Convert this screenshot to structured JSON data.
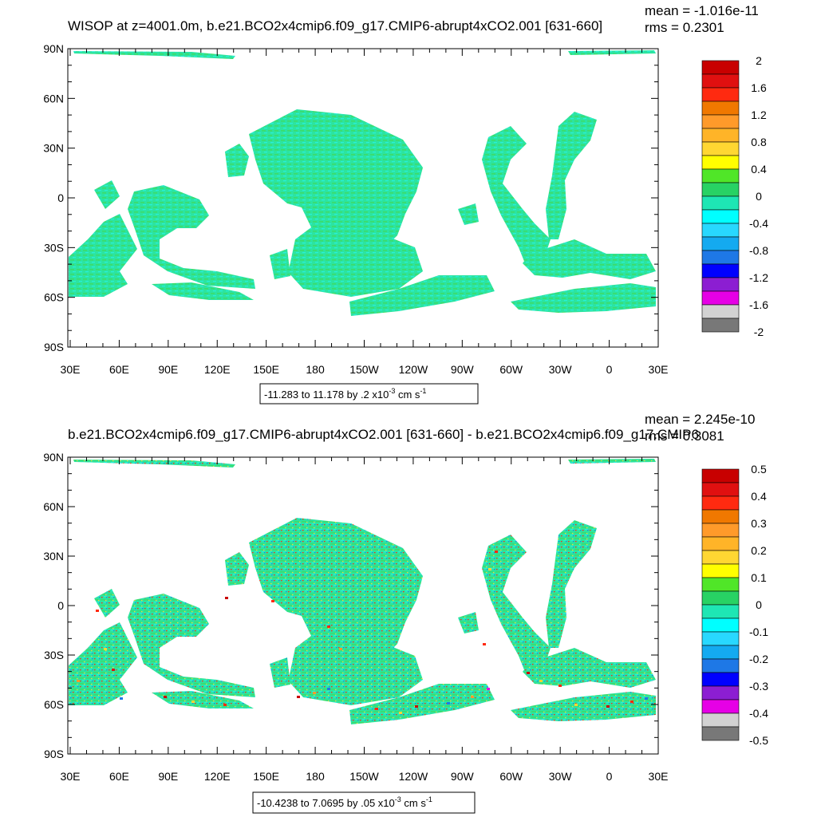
{
  "chart_data": [
    {
      "type": "heatmap",
      "title": "WISOP at z=4001.0m, b.e21.BCO2x4cmip6.f09_g17.CMIP6-abrupt4xCO2.001 [631-660]",
      "mean_text": "mean = -1.016e-11",
      "rms_text": "rms = 0.2301",
      "xticks": [
        "30E",
        "60E",
        "90E",
        "120E",
        "150E",
        "180",
        "150W",
        "120W",
        "90W",
        "60W",
        "30W",
        "0",
        "30E"
      ],
      "yticks": [
        "90N",
        "60N",
        "30N",
        "0",
        "30S",
        "60S",
        "90S"
      ],
      "colorbar_labels": [
        "2",
        "1.6",
        "1.2",
        "0.8",
        "0.4",
        "0",
        "-0.4",
        "-0.8",
        "-1.2",
        "-1.6",
        "-2"
      ],
      "range_text": "-11.283 to 11.178 by .2 x10",
      "units_exp": "-3",
      "units_text": " cm s",
      "units_exp2": "-1"
    },
    {
      "type": "heatmap",
      "title": "b.e21.BCO2x4cmip6.f09_g17.CMIP6-abrupt4xCO2.001 [631-660] - b.e21.BCO2x4cmip6.f09_g17.CMIP6",
      "mean_text": "mean = 2.245e-10",
      "rms_text": "rms = 0.3081",
      "xticks": [
        "30E",
        "60E",
        "90E",
        "120E",
        "150E",
        "180",
        "150W",
        "120W",
        "90W",
        "60W",
        "30W",
        "0",
        "30E"
      ],
      "yticks": [
        "90N",
        "60N",
        "30N",
        "0",
        "30S",
        "60S",
        "90S"
      ],
      "colorbar_labels": [
        "0.5",
        "0.4",
        "0.3",
        "0.2",
        "0.1",
        "0",
        "-0.1",
        "-0.2",
        "-0.3",
        "-0.4",
        "-0.5"
      ],
      "range_text": "-10.4238 to 7.0695 by .05 x10",
      "units_exp": "-3",
      "units_text": " cm s",
      "units_exp2": "-1"
    }
  ],
  "colors": {
    "palette": [
      "#c80000",
      "#e01010",
      "#ff2a10",
      "#f07800",
      "#ff9a2a",
      "#ffb428",
      "#ffd732",
      "#ffff00",
      "#50e628",
      "#28d264",
      "#1ee6b4",
      "#00ffff",
      "#28d8ff",
      "#14aaf0",
      "#1e78e6",
      "#0000ff",
      "#8c1ed2",
      "#e600e6",
      "#d2d2d2",
      "#787878"
    ],
    "ocean_main": "#2ae8a6",
    "ocean_light": "#27f0cf",
    "ocean_green": "#3ae076"
  }
}
